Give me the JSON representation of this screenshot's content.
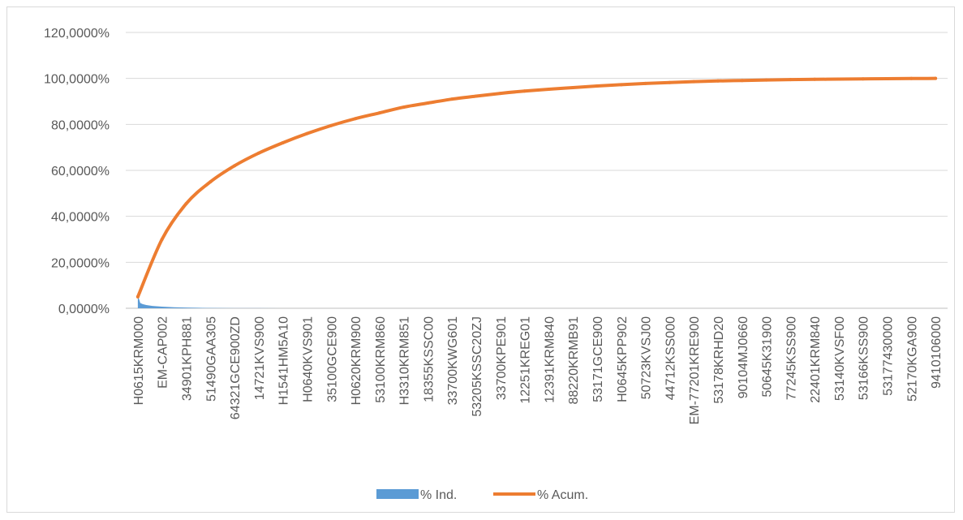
{
  "chart_data": {
    "type": "area+line",
    "title": "",
    "xlabel": "",
    "ylabel": "",
    "ylim": [
      0,
      120
    ],
    "yticks": [
      "0,0000%",
      "20,0000%",
      "40,0000%",
      "60,0000%",
      "80,0000%",
      "100,0000%",
      "120,0000%"
    ],
    "ytick_values": [
      0,
      20,
      40,
      60,
      80,
      100,
      120
    ],
    "grid": true,
    "legend_position": "bottom",
    "x_labels": [
      "H0615KRM000",
      "EM-CAP002",
      "34901KPH881",
      "51490GAA305",
      "64321GCE900ZD",
      "14721KVS900",
      "H1541HM5A10",
      "H0640KVS901",
      "35100GCE900",
      "H0620KRM900",
      "53100KRM860",
      "H3310KRM851",
      "18355KSSC00",
      "33700KWG601",
      "53205KSSC20ZJ",
      "33700KPE901",
      "12251KREG01",
      "12391KRM840",
      "88220KRMB91",
      "53171GCE900",
      "H0645KPP902",
      "50723KVSJ00",
      "44712KSS000",
      "EM-77201KRE900",
      "53178KRHD20",
      "90104MJ0660",
      "50645K31900",
      "77245KSS900",
      "22401KRM840",
      "53140KVSF00",
      "53166KSS900",
      "53177430000",
      "52170KGA900",
      "9410106000"
    ],
    "series": [
      {
        "name": "% Ind.",
        "kind": "area",
        "color": "#5b9bd5",
        "values": [
          5.0,
          1.5,
          0.8,
          0.45,
          0.28,
          0.18,
          0.12,
          0.08,
          0.05,
          0.03,
          0.02,
          0.015,
          0.01,
          0.008,
          0.006,
          0.005,
          0.004,
          0.003,
          0.003,
          0.002,
          0.002,
          0.002,
          0.001,
          0.001,
          0.001,
          0.001,
          0.001,
          0.001,
          0.001,
          0.001,
          0.001,
          0.001,
          0.001,
          0.001
        ]
      },
      {
        "name": "% Acum.",
        "kind": "line",
        "color": "#ed7d31",
        "values": [
          5.0,
          30.0,
          45.5,
          55.0,
          62.0,
          67.5,
          72.0,
          76.0,
          79.5,
          82.5,
          85.0,
          87.5,
          89.3,
          91.0,
          92.3,
          93.5,
          94.5,
          95.3,
          96.0,
          96.7,
          97.3,
          97.8,
          98.2,
          98.6,
          98.9,
          99.1,
          99.3,
          99.5,
          99.6,
          99.7,
          99.8,
          99.9,
          99.95,
          100.0
        ]
      }
    ]
  }
}
